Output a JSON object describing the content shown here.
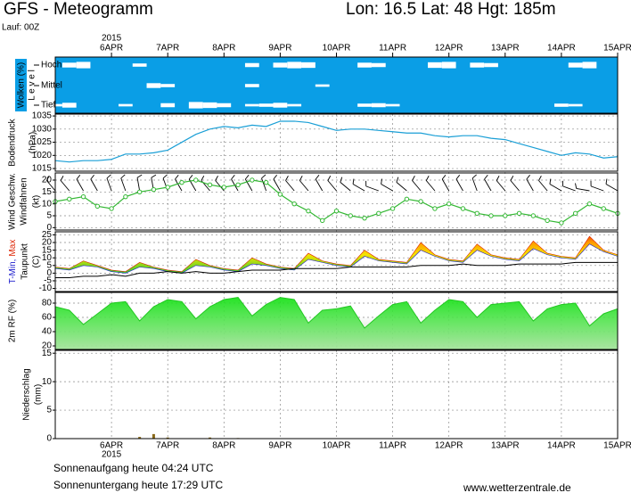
{
  "header": {
    "title": "GFS - Meteogramm",
    "location": "Lon: 16.5 Lat: 48 Hgt: 185m",
    "run": "Lauf: 00Z"
  },
  "footer": {
    "sunrise": "Sonnenaufgang heute 04:24 UTC",
    "sunset": "Sonnenuntergang heute 17:29 UTC",
    "site": "www.wetterzentrale.de"
  },
  "time_axis": {
    "x": [
      0,
      6,
      12,
      18,
      24,
      30,
      36,
      42,
      48,
      54,
      60,
      66,
      72,
      78,
      84,
      90,
      96,
      102,
      108,
      114,
      120,
      126,
      132,
      138,
      144,
      150,
      156,
      162,
      168,
      174,
      180,
      186,
      192,
      198,
      204,
      210,
      216,
      222,
      228,
      234,
      240
    ],
    "xlim": [
      0,
      240
    ],
    "xticks": [
      {
        "value": 24,
        "label": "6APR"
      },
      {
        "value": 48,
        "label": "7APR"
      },
      {
        "value": 72,
        "label": "8APR"
      },
      {
        "value": 96,
        "label": "9APR"
      },
      {
        "value": 120,
        "label": "10APR"
      },
      {
        "value": 144,
        "label": "11APR"
      },
      {
        "value": 168,
        "label": "12APR"
      },
      {
        "value": 192,
        "label": "13APR"
      },
      {
        "value": 216,
        "label": "14APR"
      },
      {
        "value": 240,
        "label": "15APR"
      }
    ],
    "year": "2015"
  },
  "chart_data": [
    {
      "type": "cloud",
      "ylabel": "Wolken (%)",
      "level_label": "L e v e l",
      "color": "#0a9ee6",
      "series": [
        {
          "name": "Hoch",
          "color": "#ffffff",
          "values": [
            0,
            60,
            80,
            0,
            0,
            0,
            40,
            0,
            0,
            0,
            0,
            0,
            0,
            0,
            50,
            0,
            60,
            80,
            70,
            0,
            0,
            0,
            60,
            50,
            0,
            0,
            0,
            70,
            80,
            0,
            60,
            50,
            0,
            0,
            0,
            0,
            0,
            60,
            80,
            0,
            0
          ]
        },
        {
          "name": "Mittel",
          "color": "#ffffff",
          "values": [
            0,
            0,
            0,
            0,
            0,
            0,
            0,
            60,
            40,
            0,
            0,
            0,
            0,
            0,
            40,
            0,
            0,
            0,
            0,
            30,
            0,
            0,
            0,
            0,
            0,
            0,
            0,
            0,
            0,
            0,
            0,
            0,
            0,
            0,
            0,
            0,
            0,
            0,
            0,
            0,
            0
          ]
        },
        {
          "name": "Tief",
          "color": "#ffffff",
          "values": [
            30,
            60,
            0,
            0,
            0,
            30,
            0,
            0,
            50,
            0,
            80,
            70,
            50,
            0,
            30,
            40,
            60,
            30,
            0,
            0,
            0,
            0,
            40,
            50,
            30,
            0,
            0,
            0,
            0,
            0,
            0,
            0,
            0,
            0,
            0,
            0,
            40,
            30,
            0,
            0,
            0
          ]
        }
      ]
    },
    {
      "type": "line",
      "ylabel": "Bodendruck",
      "yunit": "(hPa)",
      "color": "#1a9fd6",
      "grid": true,
      "ylim": [
        1014,
        1035.7
      ],
      "yticks": [
        1015,
        1020,
        1025,
        1030,
        1035
      ],
      "values": [
        1018,
        1017.5,
        1018,
        1018,
        1018.5,
        1020.5,
        1020.5,
        1021,
        1022,
        1025,
        1028,
        1030,
        1031,
        1030.5,
        1031.5,
        1031,
        1033,
        1033,
        1032.5,
        1031,
        1029.5,
        1030,
        1030,
        1029.5,
        1029,
        1028.5,
        1028.5,
        1027.5,
        1027,
        1027.5,
        1027.5,
        1026.5,
        1026,
        1024.5,
        1023,
        1021.5,
        1020,
        1021,
        1020.5,
        1019,
        1019.5
      ]
    },
    {
      "type": "wind",
      "ylabel": "Windfahnen",
      "yunit": "(kt)",
      "grid": true,
      "ylim": [
        -1,
        23
      ],
      "yticks": [
        0,
        5,
        10,
        15,
        20
      ],
      "series": [
        {
          "name": "Wind Geschw.",
          "color": "#33b833",
          "values": [
            11,
            12,
            13,
            9,
            8,
            13,
            15,
            16,
            17,
            19,
            20,
            18,
            17,
            18,
            20,
            19,
            14,
            10,
            7,
            3,
            7,
            5,
            4,
            6,
            8,
            12,
            11,
            8,
            10,
            8,
            6,
            5,
            5,
            6,
            5,
            3,
            2,
            6,
            10,
            8,
            6
          ]
        }
      ],
      "direction": [
        320,
        320,
        330,
        330,
        340,
        340,
        350,
        350,
        340,
        330,
        330,
        320,
        320,
        330,
        330,
        340,
        330,
        320,
        320,
        330,
        320,
        310,
        300,
        290,
        300,
        310,
        320,
        320,
        330,
        330,
        340,
        330,
        320,
        320,
        330,
        320,
        300,
        290,
        280,
        290,
        300
      ]
    },
    {
      "type": "band",
      "yunit": "(C)",
      "grid": true,
      "ylim": [
        -12,
        27
      ],
      "yticks": [
        -10,
        -5,
        0,
        5,
        10,
        15,
        20,
        25
      ],
      "series": [
        {
          "name": "T-Min,",
          "color": "#1a1acc",
          "values": [
            3,
            2,
            5,
            4,
            1,
            0,
            4,
            3,
            1,
            0,
            5,
            4,
            2,
            1,
            6,
            5,
            3,
            2,
            9,
            7,
            5,
            4,
            11,
            8,
            7,
            6,
            15,
            11,
            8,
            7,
            15,
            11,
            9,
            8,
            16,
            12,
            10,
            9,
            19,
            14,
            11
          ]
        },
        {
          "name": "Max",
          "color": "#dd2200",
          "values": [
            4,
            3,
            8,
            5,
            2,
            1,
            7,
            4,
            2,
            1,
            9,
            5,
            3,
            2,
            10,
            6,
            4,
            3,
            13,
            8,
            6,
            5,
            15,
            9,
            8,
            7,
            20,
            12,
            9,
            8,
            19,
            12,
            10,
            9,
            21,
            13,
            11,
            10,
            24,
            15,
            12
          ]
        },
        {
          "name": "Taupunkt",
          "color": "#000000",
          "values": [
            -3,
            -3,
            -2,
            -2,
            -1,
            -2,
            0,
            0,
            1,
            0,
            1,
            0,
            0,
            1,
            2,
            2,
            2,
            3,
            3,
            3,
            3,
            4,
            4,
            4,
            4,
            4,
            5,
            5,
            5,
            6,
            5,
            5,
            5,
            6,
            6,
            6,
            6,
            7,
            7,
            7,
            7
          ]
        }
      ]
    },
    {
      "type": "area",
      "grid": true,
      "ylim": [
        15,
        95
      ],
      "yticks": [
        20,
        40,
        60,
        80
      ],
      "series": [
        {
          "name": "2m RF (%)",
          "color": "#22c822",
          "values": [
            75,
            70,
            50,
            65,
            80,
            82,
            55,
            75,
            85,
            82,
            58,
            75,
            85,
            88,
            62,
            78,
            88,
            85,
            52,
            70,
            72,
            76,
            45,
            62,
            78,
            82,
            52,
            70,
            85,
            82,
            60,
            78,
            80,
            82,
            55,
            72,
            78,
            80,
            48,
            65,
            72
          ]
        }
      ]
    },
    {
      "type": "bar",
      "ylabel": "Niederschlag",
      "yunit": "(mm)",
      "color": "#8a6a1a",
      "grid": true,
      "ylim": [
        0,
        15.5
      ],
      "yticks": [
        0,
        5,
        10,
        15
      ],
      "values": [
        0,
        0,
        0,
        0,
        0,
        0,
        0.3,
        0.8,
        0.2,
        0,
        0,
        0.2,
        0,
        0.1,
        0,
        0,
        0,
        0,
        0,
        0,
        0,
        0,
        0,
        0,
        0,
        0,
        0,
        0,
        0,
        0,
        0,
        0,
        0,
        0,
        0,
        0,
        0,
        0,
        0,
        0,
        0
      ]
    }
  ]
}
